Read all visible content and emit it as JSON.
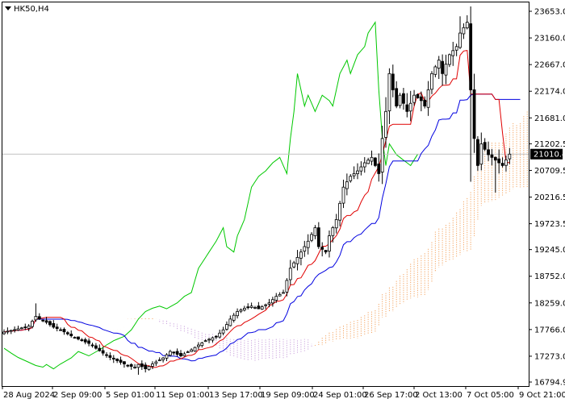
{
  "symbol_label": "HK50,H4",
  "chart_data": {
    "type": "candlestick",
    "symbol": "HK50",
    "timeframe": "H4",
    "indicator": "Ichimoku Kinko Hyo",
    "current_price": 21010.4,
    "current_price_label": "21010.4",
    "ylim": [
      16794.9,
      23653.0
    ],
    "y_ticks": [
      "23653.0",
      "23160.0",
      "22667.0",
      "22174.0",
      "21681.0",
      "21202.5",
      "20709.5",
      "20216.5",
      "19723.5",
      "19245.0",
      "18752.0",
      "18259.0",
      "17766.0",
      "17273.0",
      "16794.9"
    ],
    "x_ticks": [
      "28 Aug 2024",
      "2 Sep 09:00",
      "5 Sep 01:00",
      "11 Sep 01:00",
      "13 Sep 17:00",
      "19 Sep 09:00",
      "24 Sep 01:00",
      "26 Sep 17:00",
      "2 Oct 13:00",
      "7 Oct 05:00",
      "9 Oct 21:00"
    ],
    "colors": {
      "candles": "#000000",
      "tenkan_sen": "#e00000",
      "kijun_sen": "#0000e0",
      "chikou_span": "#00c800",
      "senkou_bullish_cloud": "#f4a460",
      "senkou_bearish_cloud": "#c9a0dc",
      "price_line": "#c0c0c0",
      "price_tag_bg": "#000000",
      "price_tag_text": "#ffffff"
    },
    "close_anchors": [
      [
        0,
        17720
      ],
      [
        4,
        17780
      ],
      [
        7,
        17830
      ],
      [
        9,
        18010
      ],
      [
        10,
        17960
      ],
      [
        12,
        17900
      ],
      [
        14,
        17810
      ],
      [
        16,
        17760
      ],
      [
        19,
        17650
      ],
      [
        22,
        17560
      ],
      [
        24,
        17510
      ],
      [
        26,
        17420
      ],
      [
        28,
        17330
      ],
      [
        30,
        17250
      ],
      [
        33,
        17160
      ],
      [
        35,
        17100
      ],
      [
        37,
        17070
      ],
      [
        38,
        17120
      ],
      [
        40,
        17040
      ],
      [
        42,
        17130
      ],
      [
        45,
        17240
      ],
      [
        47,
        17360
      ],
      [
        50,
        17280
      ],
      [
        53,
        17390
      ],
      [
        55,
        17480
      ],
      [
        57,
        17560
      ],
      [
        60,
        17640
      ],
      [
        62,
        17760
      ],
      [
        64,
        17960
      ],
      [
        66,
        18100
      ],
      [
        68,
        18160
      ],
      [
        70,
        18200
      ],
      [
        72,
        18150
      ],
      [
        75,
        18260
      ],
      [
        77,
        18380
      ],
      [
        79,
        18450
      ],
      [
        81,
        18900
      ],
      [
        84,
        19200
      ],
      [
        86,
        19400
      ],
      [
        88,
        19650
      ],
      [
        89,
        19300
      ],
      [
        91,
        19200
      ],
      [
        92,
        19500
      ],
      [
        94,
        19800
      ],
      [
        96,
        20400
      ],
      [
        98,
        20600
      ],
      [
        100,
        20700
      ],
      [
        102,
        20850
      ],
      [
        104,
        20950
      ],
      [
        106,
        20650
      ],
      [
        107,
        21300
      ],
      [
        108,
        21800
      ],
      [
        109,
        22500
      ],
      [
        110,
        22200
      ],
      [
        111,
        21900
      ],
      [
        112,
        22100
      ],
      [
        114,
        21800
      ],
      [
        116,
        22100
      ],
      [
        118,
        22000
      ],
      [
        119,
        21900
      ],
      [
        121,
        22500
      ],
      [
        123,
        22750
      ],
      [
        124,
        22500
      ],
      [
        126,
        22850
      ],
      [
        128,
        23000
      ],
      [
        129,
        23250
      ],
      [
        130,
        23350
      ],
      [
        131,
        23450
      ],
      [
        132,
        22200
      ],
      [
        133,
        21300
      ],
      [
        134,
        20800
      ],
      [
        135,
        21200
      ],
      [
        137,
        21000
      ],
      [
        139,
        20900
      ],
      [
        141,
        20800
      ],
      [
        143,
        21010
      ]
    ],
    "high_anchors": [
      [
        9,
        18250
      ],
      [
        129,
        23560
      ],
      [
        131,
        23580
      ]
    ],
    "low_anchors": [
      [
        38,
        16930
      ],
      [
        132,
        20500
      ],
      [
        139,
        20300
      ]
    ]
  }
}
